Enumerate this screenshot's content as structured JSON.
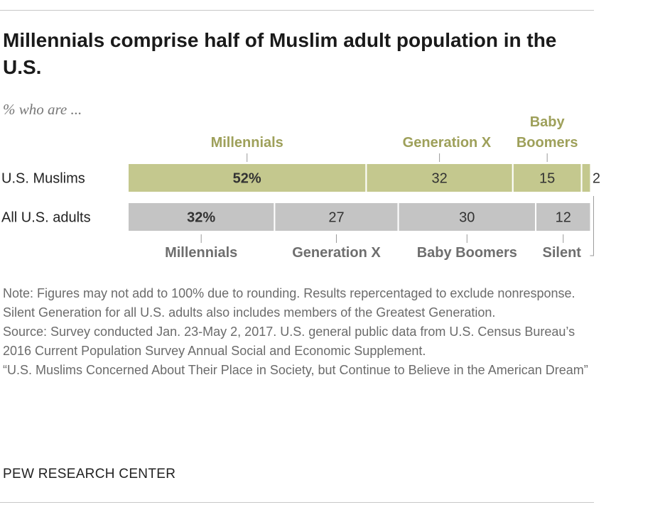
{
  "title": "Millennials comprise half of Muslim adult population in the U.S.",
  "subtitle": "% who are ...",
  "chart_data": {
    "type": "bar",
    "orientation": "horizontal",
    "stacked": true,
    "categories": [
      "U.S. Muslims",
      "All U.S. adults"
    ],
    "series": [
      {
        "name": "Millennials",
        "values": [
          52,
          32
        ],
        "labels": [
          "52%",
          "32%"
        ]
      },
      {
        "name": "Generation X",
        "values": [
          32,
          27
        ],
        "labels": [
          "32",
          "27"
        ]
      },
      {
        "name": "Baby Boomers",
        "values": [
          15,
          30
        ],
        "labels": [
          "15",
          "30"
        ]
      },
      {
        "name": "Silent",
        "values": [
          2,
          12
        ],
        "labels": [
          "2",
          "12"
        ]
      }
    ],
    "top_segment_labels": [
      "Millennials",
      "Generation X",
      "Baby Boomers"
    ],
    "bottom_segment_labels": [
      "Millennials",
      "Generation X",
      "Baby Boomers",
      "Silent"
    ],
    "colors": {
      "muslims": "#c4c88e",
      "all_adults": "#c4c4c4",
      "label_green": "#9ea05a",
      "label_gray": "#6e6e6e"
    },
    "xlim": [
      0,
      100
    ]
  },
  "notes": [
    "Note: Figures may not add to 100% due to rounding. Results repercentaged to exclude nonresponse. Silent Generation for all U.S. adults also includes members of the Greatest Generation.",
    "Source: Survey conducted Jan. 23-May 2, 2017. U.S. general public data from U.S. Census Bureau’s 2016 Current Population Survey Annual Social and Economic Supplement.",
    "“U.S. Muslims Concerned About Their Place in Society, but Continue to Believe in the American Dream”"
  ],
  "credit": "PEW RESEARCH CENTER"
}
